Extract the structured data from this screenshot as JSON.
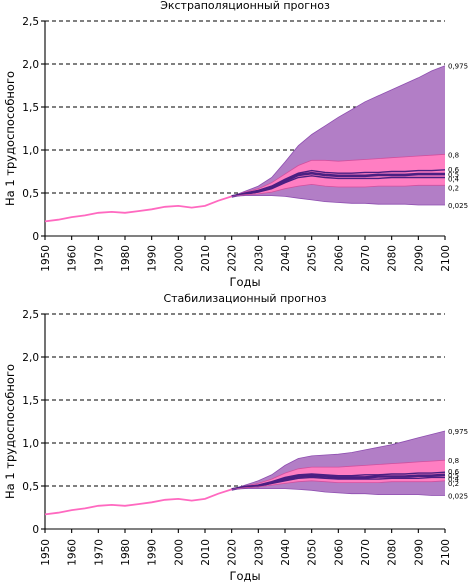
{
  "chart_data": [
    {
      "type": "area",
      "title": "Экстраполяционный прогноз",
      "xlabel": "Годы",
      "ylabel": "На 1 трудоспособного",
      "xlim": [
        1950,
        2100
      ],
      "ylim": [
        0,
        2.5
      ],
      "y_ticks": [
        "0",
        "0,5",
        "1,0",
        "1,5",
        "2,0",
        "2,5"
      ],
      "x_ticks": [
        "1950",
        "1960",
        "1970",
        "1980",
        "1990",
        "2000",
        "2010",
        "2020",
        "2030",
        "2040",
        "2050",
        "2060",
        "2070",
        "2080",
        "2090",
        "2100"
      ],
      "grid": "horizontal-dashed",
      "band_labels": [
        "0,975",
        "0,8",
        "0,6",
        "0,5",
        "0,4",
        "0,2",
        "0,025"
      ],
      "colors": {
        "outer_band": "#b27ec6",
        "inner_band": "#ff7ec2",
        "median": "#4a1f82",
        "history": "#ff69c0"
      },
      "history": {
        "x": [
          1950,
          1955,
          1960,
          1965,
          1970,
          1975,
          1980,
          1985,
          1990,
          1995,
          2000,
          2005,
          2010,
          2015,
          2020
        ],
        "y": [
          0.17,
          0.19,
          0.22,
          0.24,
          0.27,
          0.28,
          0.27,
          0.29,
          0.31,
          0.34,
          0.35,
          0.33,
          0.35,
          0.41,
          0.46
        ]
      },
      "forecast_x": [
        2020,
        2025,
        2030,
        2035,
        2040,
        2045,
        2050,
        2055,
        2060,
        2065,
        2070,
        2075,
        2080,
        2085,
        2090,
        2095,
        2100
      ],
      "series": [
        {
          "name": "0,975",
          "values": [
            0.46,
            0.52,
            0.58,
            0.68,
            0.86,
            1.05,
            1.18,
            1.28,
            1.38,
            1.47,
            1.56,
            1.63,
            1.7,
            1.77,
            1.84,
            1.92,
            1.98
          ]
        },
        {
          "name": "0,8",
          "values": [
            0.46,
            0.51,
            0.55,
            0.62,
            0.72,
            0.82,
            0.88,
            0.88,
            0.87,
            0.88,
            0.89,
            0.9,
            0.91,
            0.92,
            0.93,
            0.94,
            0.95
          ]
        },
        {
          "name": "0,6",
          "values": [
            0.46,
            0.5,
            0.53,
            0.58,
            0.66,
            0.73,
            0.76,
            0.74,
            0.73,
            0.73,
            0.74,
            0.74,
            0.75,
            0.75,
            0.76,
            0.76,
            0.77
          ]
        },
        {
          "name": "0,5",
          "values": [
            0.46,
            0.49,
            0.52,
            0.57,
            0.64,
            0.71,
            0.73,
            0.71,
            0.7,
            0.7,
            0.7,
            0.71,
            0.71,
            0.71,
            0.72,
            0.72,
            0.72
          ]
        },
        {
          "name": "0,4",
          "values": [
            0.46,
            0.49,
            0.51,
            0.55,
            0.62,
            0.68,
            0.7,
            0.68,
            0.67,
            0.67,
            0.67,
            0.67,
            0.68,
            0.68,
            0.68,
            0.68,
            0.68
          ]
        },
        {
          "name": "0,2",
          "values": [
            0.46,
            0.48,
            0.49,
            0.51,
            0.55,
            0.58,
            0.6,
            0.58,
            0.57,
            0.57,
            0.57,
            0.58,
            0.58,
            0.58,
            0.59,
            0.59,
            0.59
          ]
        },
        {
          "name": "0,025",
          "values": [
            0.46,
            0.47,
            0.47,
            0.47,
            0.46,
            0.44,
            0.42,
            0.4,
            0.39,
            0.38,
            0.38,
            0.37,
            0.37,
            0.37,
            0.36,
            0.36,
            0.36
          ]
        }
      ]
    },
    {
      "type": "area",
      "title": "Стабилизационный прогноз",
      "xlabel": "Годы",
      "ylabel": "На 1 трудоспособного",
      "xlim": [
        1950,
        2100
      ],
      "ylim": [
        0,
        2.5
      ],
      "y_ticks": [
        "0",
        "0,5",
        "1,0",
        "1,5",
        "2,0",
        "2,5"
      ],
      "x_ticks": [
        "1950",
        "1960",
        "1970",
        "1980",
        "1990",
        "2000",
        "2010",
        "2020",
        "2030",
        "2040",
        "2050",
        "2060",
        "2070",
        "2080",
        "2090",
        "2100"
      ],
      "grid": "horizontal-dashed",
      "band_labels": [
        "0,975",
        "0,8",
        "0,6",
        "0,5",
        "0,4",
        "0,2",
        "0,025"
      ],
      "colors": {
        "outer_band": "#b27ec6",
        "inner_band": "#ff7ec2",
        "median": "#4a1f82",
        "history": "#ff69c0"
      },
      "history": {
        "x": [
          1950,
          1955,
          1960,
          1965,
          1970,
          1975,
          1980,
          1985,
          1990,
          1995,
          2000,
          2005,
          2010,
          2015,
          2020
        ],
        "y": [
          0.17,
          0.19,
          0.22,
          0.24,
          0.27,
          0.28,
          0.27,
          0.29,
          0.31,
          0.34,
          0.35,
          0.33,
          0.35,
          0.41,
          0.46
        ]
      },
      "forecast_x": [
        2020,
        2025,
        2030,
        2035,
        2040,
        2045,
        2050,
        2055,
        2060,
        2065,
        2070,
        2075,
        2080,
        2085,
        2090,
        2095,
        2100
      ],
      "series": [
        {
          "name": "0,975",
          "values": [
            0.46,
            0.51,
            0.56,
            0.63,
            0.74,
            0.82,
            0.85,
            0.86,
            0.87,
            0.89,
            0.92,
            0.95,
            0.98,
            1.02,
            1.06,
            1.1,
            1.14
          ]
        },
        {
          "name": "0,8",
          "values": [
            0.46,
            0.5,
            0.53,
            0.58,
            0.65,
            0.7,
            0.72,
            0.72,
            0.72,
            0.73,
            0.74,
            0.75,
            0.76,
            0.77,
            0.78,
            0.79,
            0.8
          ]
        },
        {
          "name": "0,6",
          "values": [
            0.46,
            0.49,
            0.51,
            0.55,
            0.6,
            0.63,
            0.64,
            0.63,
            0.62,
            0.62,
            0.63,
            0.63,
            0.64,
            0.64,
            0.65,
            0.65,
            0.66
          ]
        },
        {
          "name": "0,5",
          "values": [
            0.46,
            0.49,
            0.5,
            0.54,
            0.58,
            0.61,
            0.62,
            0.61,
            0.6,
            0.6,
            0.6,
            0.61,
            0.61,
            0.61,
            0.62,
            0.62,
            0.63
          ]
        },
        {
          "name": "0,4",
          "values": [
            0.46,
            0.48,
            0.5,
            0.53,
            0.56,
            0.59,
            0.6,
            0.59,
            0.58,
            0.58,
            0.58,
            0.58,
            0.59,
            0.59,
            0.59,
            0.6,
            0.6
          ]
        },
        {
          "name": "0,2",
          "values": [
            0.46,
            0.48,
            0.49,
            0.51,
            0.53,
            0.55,
            0.56,
            0.55,
            0.54,
            0.54,
            0.54,
            0.54,
            0.55,
            0.55,
            0.55,
            0.55,
            0.56
          ]
        },
        {
          "name": "0,025",
          "values": [
            0.46,
            0.47,
            0.47,
            0.47,
            0.47,
            0.46,
            0.45,
            0.43,
            0.42,
            0.41,
            0.41,
            0.4,
            0.4,
            0.4,
            0.4,
            0.39,
            0.39
          ]
        }
      ]
    }
  ]
}
